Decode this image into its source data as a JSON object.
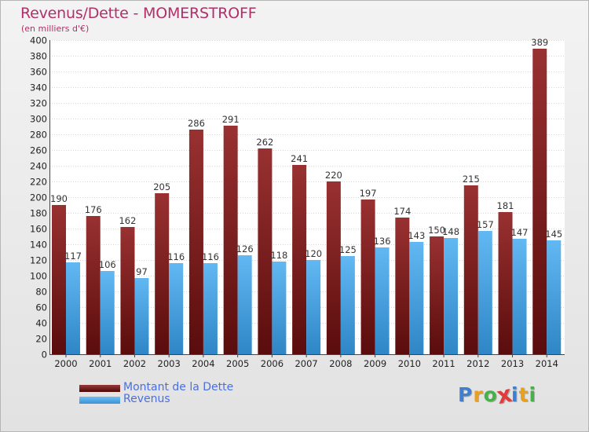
{
  "title": "Revenus/Dette - MOMERSTROFF",
  "subtitle": "(en milliers d'€)",
  "colors": {
    "dette": "#7f1d1d",
    "revenus": "#4aa8e8",
    "title": "#b0306a",
    "legend_text": "#4a6fe0"
  },
  "legend": [
    {
      "label": "Montant de la Dette",
      "color": "#7f1d1d"
    },
    {
      "label": "Revenus",
      "color": "#4aa8e8"
    }
  ],
  "logo": {
    "text": "Proxiti",
    "letters": [
      {
        "ch": "P",
        "color": "#3d7fd0"
      },
      {
        "ch": "r",
        "color": "#e8a020"
      },
      {
        "ch": "o",
        "color": "#48b048"
      },
      {
        "ch": "x",
        "color": "#e03c3c"
      },
      {
        "ch": "i",
        "color": "#3d7fd0"
      },
      {
        "ch": "t",
        "color": "#e8a020"
      },
      {
        "ch": "i",
        "color": "#48b048"
      }
    ]
  },
  "chart_data": {
    "type": "bar",
    "categories": [
      "2000",
      "2001",
      "2002",
      "2003",
      "2004",
      "2005",
      "2006",
      "2007",
      "2008",
      "2009",
      "2010",
      "2011",
      "2012",
      "2013",
      "2014"
    ],
    "series": [
      {
        "name": "Montant de la Dette",
        "values": [
          190,
          176,
          162,
          205,
          286,
          291,
          262,
          241,
          220,
          197,
          174,
          150,
          215,
          181,
          389
        ]
      },
      {
        "name": "Revenus",
        "values": [
          117,
          106,
          97,
          116,
          116,
          126,
          118,
          120,
          125,
          136,
          143,
          148,
          157,
          147,
          145
        ]
      }
    ],
    "title": "Revenus/Dette - MOMERSTROFF",
    "ylabel": "(en milliers d'€)",
    "ylim": [
      0,
      400
    ],
    "ytick_step": 20,
    "grid": true,
    "legend_position": "bottom-left"
  }
}
